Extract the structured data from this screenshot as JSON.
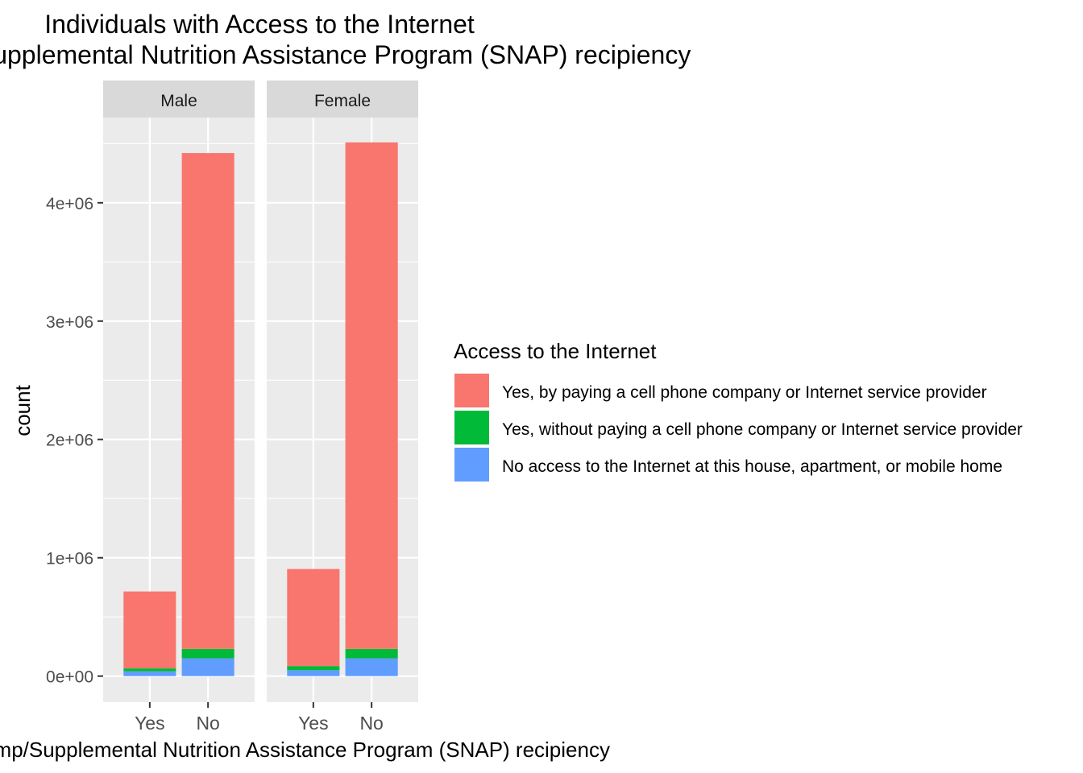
{
  "chart_data": {
    "type": "bar",
    "stacked": true,
    "title": "Individuals with Access to the Internet",
    "subtitle": "Food Stamp/Supplemental Nutrition Assistance Program (SNAP) recipiency",
    "xlabel": "Food Stamp/Supplemental Nutrition Assistance Program (SNAP) recipiency",
    "ylabel": "count",
    "ylim": [
      -220000,
      4720000
    ],
    "yticks": [
      0,
      1000000,
      2000000,
      3000000,
      4000000
    ],
    "ytick_labels": [
      "0e+00",
      "1e+06",
      "2e+06",
      "3e+06",
      "4e+06"
    ],
    "grid": true,
    "categories": [
      "Yes",
      "No"
    ],
    "legend": {
      "title": "Access to the Internet",
      "placement": "right",
      "entries": [
        {
          "name": "Yes, by paying a cell phone company or Internet service provider",
          "color": "#F8766D"
        },
        {
          "name": "Yes, without paying a cell phone company or Internet service provider",
          "color": "#00BA38"
        },
        {
          "name": "No access to the Internet at this house, apartment, or mobile home",
          "color": "#619CFF"
        }
      ]
    },
    "facets": [
      {
        "label": "Male",
        "series": [
          {
            "name": "Yes, by paying a cell phone company or Internet service provider",
            "values": [
              650000,
              4190000
            ]
          },
          {
            "name": "Yes, without paying a cell phone company or Internet service provider",
            "values": [
              25000,
              80000
            ]
          },
          {
            "name": "No access to the Internet at this house, apartment, or mobile home",
            "values": [
              40000,
              150000
            ]
          }
        ]
      },
      {
        "label": "Female",
        "series": [
          {
            "name": "Yes, by paying a cell phone company or Internet service provider",
            "values": [
              820000,
              4280000
            ]
          },
          {
            "name": "Yes, without paying a cell phone company or Internet service provider",
            "values": [
              35000,
              80000
            ]
          },
          {
            "name": "No access to the Internet at this house, apartment, or mobile home",
            "values": [
              50000,
              150000
            ]
          }
        ]
      }
    ]
  }
}
